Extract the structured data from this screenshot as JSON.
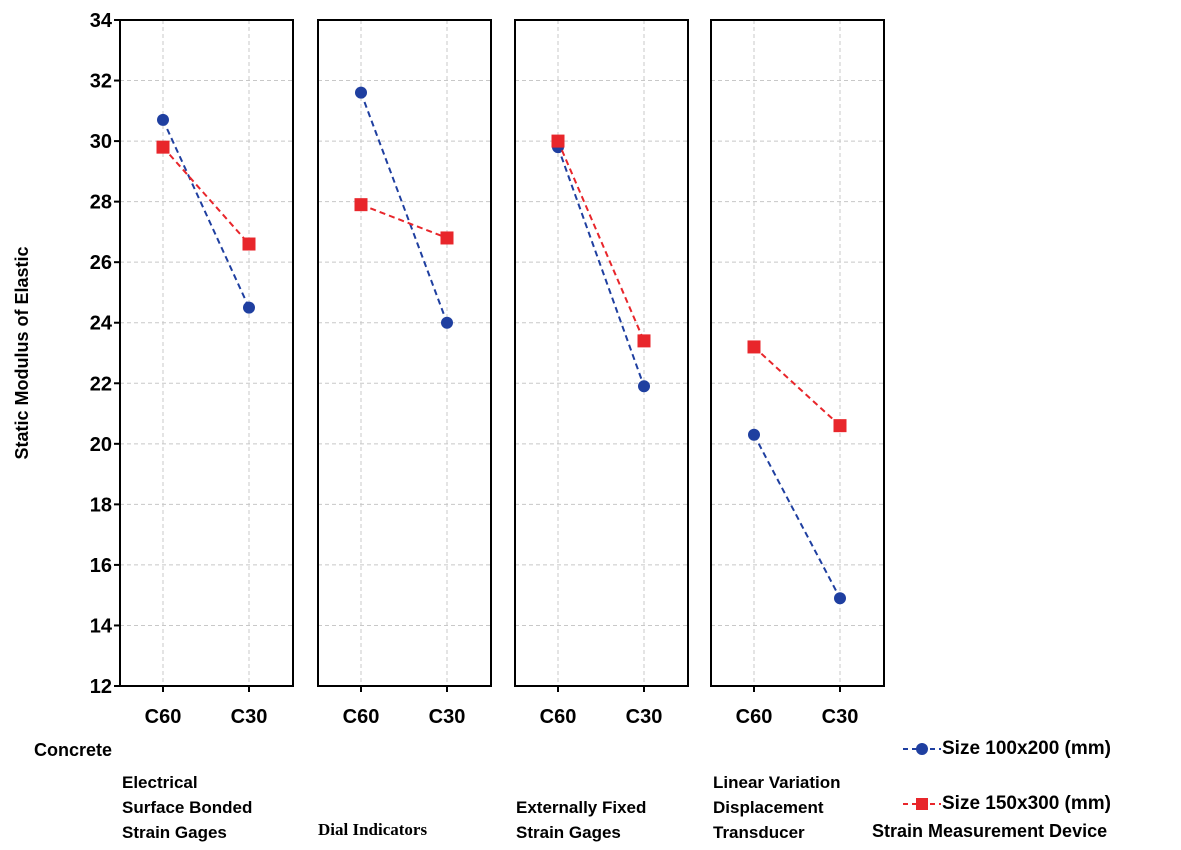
{
  "chart_data": {
    "type": "line",
    "ylabel": "Static Modulus of Elastic",
    "ylim": [
      12,
      34
    ],
    "yticks": [
      "12",
      "14",
      "16",
      "18",
      "20",
      "22",
      "24",
      "26",
      "28",
      "30",
      "32",
      "34"
    ],
    "grid": true,
    "categories": [
      "C60",
      "C30"
    ],
    "x_factor_label": "Concrete",
    "panel_factor_label": "Strain Measurement Device",
    "panels": [
      {
        "label": "Electrical\nSurface Bonded\nStrain Gages"
      },
      {
        "label": "Dial Indicators"
      },
      {
        "label": "Externally Fixed\nStrain Gages"
      },
      {
        "label": "Linear Variation\nDisplacement\nTransducer"
      }
    ],
    "series": [
      {
        "name": "Size 100x200 (mm)",
        "color": "#1f3fa0",
        "marker": "circle",
        "values": [
          [
            30.7,
            24.5
          ],
          [
            31.6,
            24.0
          ],
          [
            29.8,
            21.9
          ],
          [
            20.3,
            14.9
          ]
        ]
      },
      {
        "name": "Size 150x300 (mm)",
        "color": "#e8262b",
        "marker": "square",
        "values": [
          [
            29.8,
            26.6
          ],
          [
            27.9,
            26.8
          ],
          [
            30.0,
            23.4
          ],
          [
            23.2,
            20.6
          ]
        ]
      }
    ],
    "legend_position": "bottom-right"
  }
}
